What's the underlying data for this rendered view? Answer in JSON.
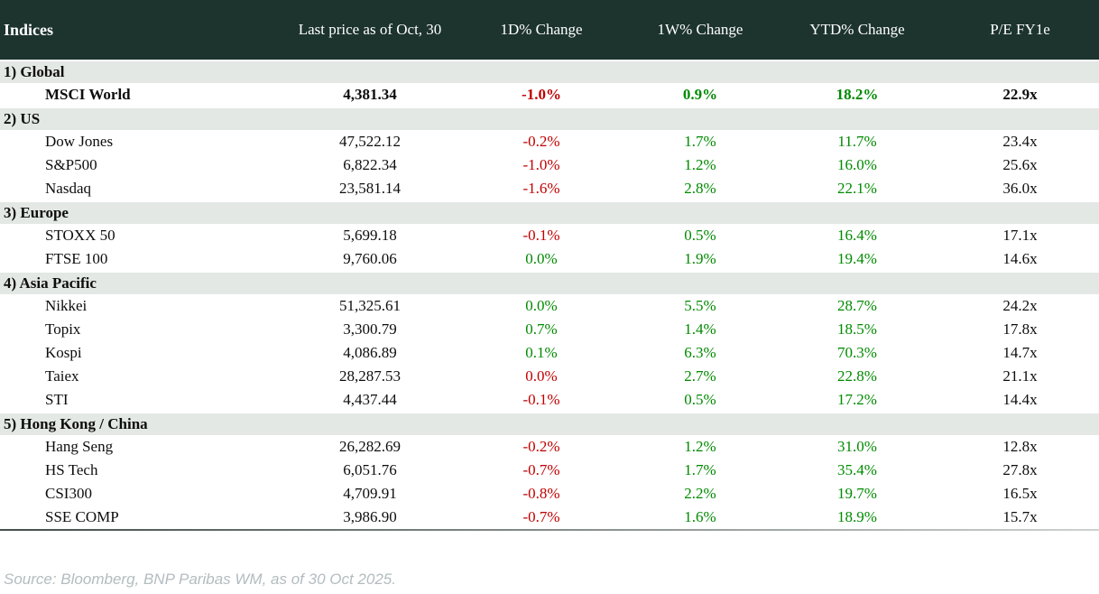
{
  "chart_data": {
    "type": "table",
    "title": "Indices",
    "columns": [
      "Indices",
      "Last price as of Oct, 30",
      "1D% Change",
      "1W% Change",
      "YTD% Change",
      "P/E FY1e"
    ],
    "sections": [
      {
        "label": "1) Global",
        "rows": [
          {
            "name": "MSCI World",
            "last_price": "4,381.34",
            "d1_change": "-1.0%",
            "d1_color": "negative",
            "w1_change": "0.9%",
            "w1_color": "positive",
            "ytd_change": "18.2%",
            "ytd_color": "positive",
            "pe": "22.9x",
            "bold": true
          }
        ]
      },
      {
        "label": "2) US",
        "rows": [
          {
            "name": "Dow Jones",
            "last_price": "47,522.12",
            "d1_change": "-0.2%",
            "d1_color": "negative",
            "w1_change": "1.7%",
            "w1_color": "positive",
            "ytd_change": "11.7%",
            "ytd_color": "positive",
            "pe": "23.4x"
          },
          {
            "name": "S&P500",
            "last_price": "6,822.34",
            "d1_change": "-1.0%",
            "d1_color": "negative",
            "w1_change": "1.2%",
            "w1_color": "positive",
            "ytd_change": "16.0%",
            "ytd_color": "positive",
            "pe": "25.6x"
          },
          {
            "name": "Nasdaq",
            "last_price": "23,581.14",
            "d1_change": "-1.6%",
            "d1_color": "negative",
            "w1_change": "2.8%",
            "w1_color": "positive",
            "ytd_change": "22.1%",
            "ytd_color": "positive",
            "pe": "36.0x"
          }
        ]
      },
      {
        "label": "3) Europe",
        "rows": [
          {
            "name": "STOXX 50",
            "last_price": "5,699.18",
            "d1_change": "-0.1%",
            "d1_color": "negative",
            "w1_change": "0.5%",
            "w1_color": "positive",
            "ytd_change": "16.4%",
            "ytd_color": "positive",
            "pe": "17.1x"
          },
          {
            "name": "FTSE 100",
            "last_price": "9,760.06",
            "d1_change": "0.0%",
            "d1_color": "positive",
            "w1_change": "1.9%",
            "w1_color": "positive",
            "ytd_change": "19.4%",
            "ytd_color": "positive",
            "pe": "14.6x"
          }
        ]
      },
      {
        "label": "4) Asia Pacific",
        "rows": [
          {
            "name": "Nikkei",
            "last_price": "51,325.61",
            "d1_change": "0.0%",
            "d1_color": "positive",
            "w1_change": "5.5%",
            "w1_color": "positive",
            "ytd_change": "28.7%",
            "ytd_color": "positive",
            "pe": "24.2x"
          },
          {
            "name": "Topix",
            "last_price": "3,300.79",
            "d1_change": "0.7%",
            "d1_color": "positive",
            "w1_change": "1.4%",
            "w1_color": "positive",
            "ytd_change": "18.5%",
            "ytd_color": "positive",
            "pe": "17.8x"
          },
          {
            "name": "Kospi",
            "last_price": "4,086.89",
            "d1_change": "0.1%",
            "d1_color": "positive",
            "w1_change": "6.3%",
            "w1_color": "positive",
            "ytd_change": "70.3%",
            "ytd_color": "positive",
            "pe": "14.7x"
          },
          {
            "name": "Taiex",
            "last_price": "28,287.53",
            "d1_change": "0.0%",
            "d1_color": "negative",
            "w1_change": "2.7%",
            "w1_color": "positive",
            "ytd_change": "22.8%",
            "ytd_color": "positive",
            "pe": "21.1x"
          },
          {
            "name": "STI",
            "last_price": "4,437.44",
            "d1_change": "-0.1%",
            "d1_color": "negative",
            "w1_change": "0.5%",
            "w1_color": "positive",
            "ytd_change": "17.2%",
            "ytd_color": "positive",
            "pe": "14.4x"
          }
        ]
      },
      {
        "label": "5) Hong Kong / China",
        "rows": [
          {
            "name": "Hang Seng",
            "last_price": "26,282.69",
            "d1_change": "-0.2%",
            "d1_color": "negative",
            "w1_change": "1.2%",
            "w1_color": "positive",
            "ytd_change": "31.0%",
            "ytd_color": "positive",
            "pe": "12.8x"
          },
          {
            "name": "HS Tech",
            "last_price": "6,051.76",
            "d1_change": "-0.7%",
            "d1_color": "negative",
            "w1_change": "1.7%",
            "w1_color": "positive",
            "ytd_change": "35.4%",
            "ytd_color": "positive",
            "pe": "27.8x"
          },
          {
            "name": "CSI300",
            "last_price": "4,709.91",
            "d1_change": "-0.8%",
            "d1_color": "negative",
            "w1_change": "2.2%",
            "w1_color": "positive",
            "ytd_change": "19.7%",
            "ytd_color": "positive",
            "pe": "16.5x"
          },
          {
            "name": "SSE COMP",
            "last_price": "3,986.90",
            "d1_change": "-0.7%",
            "d1_color": "negative",
            "w1_change": "1.6%",
            "w1_color": "positive",
            "ytd_change": "18.9%",
            "ytd_color": "positive",
            "pe": "15.7x"
          }
        ]
      }
    ]
  },
  "footer": {
    "source": "Source: Bloomberg, BNP Paribas WM, as of 30 Oct 2025."
  },
  "colors": {
    "header-bg": "#1c332e",
    "header-text": "#ffffff",
    "section-bg": "#e3e8e4",
    "negative": "#c00000",
    "positive": "#008a00",
    "text": "#0d0d0d",
    "footer-text": "#b3bcc0"
  }
}
